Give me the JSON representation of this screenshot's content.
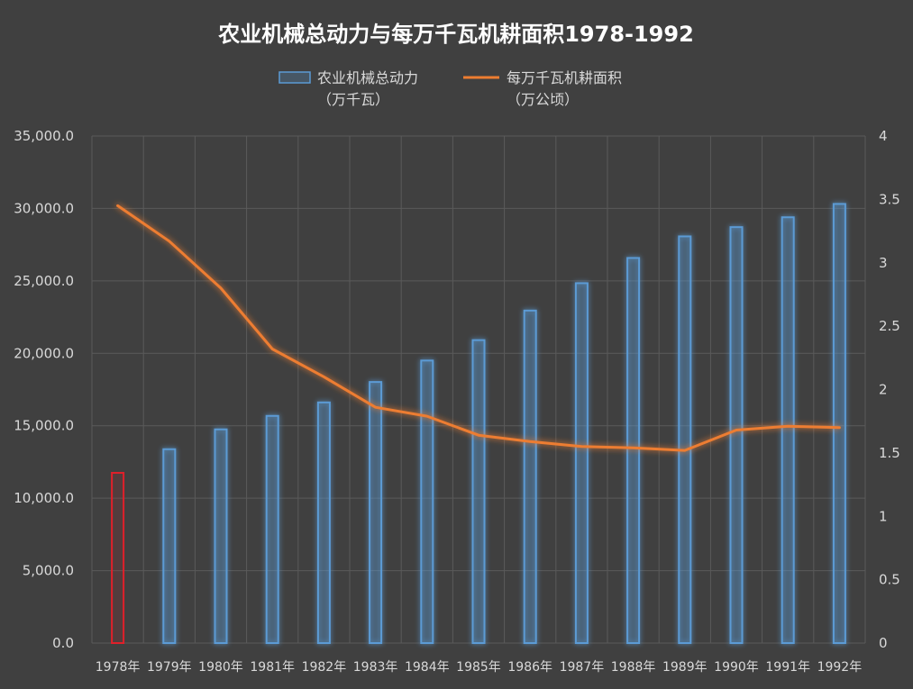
{
  "chart_data": {
    "type": "bar+line",
    "title": "农业机械总动力与每万千瓦机耕面积1978-1992",
    "categories": [
      "1978年",
      "1979年",
      "1980年",
      "1981年",
      "1982年",
      "1983年",
      "1984年",
      "1985年",
      "1986年",
      "1987年",
      "1988年",
      "1989年",
      "1990年",
      "1991年",
      "1992年"
    ],
    "series": [
      {
        "name": "农业机械总动力",
        "unit": "（万千瓦）",
        "type": "bar",
        "axis": "left",
        "values": [
          11750,
          13380,
          14750,
          15680,
          16610,
          18020,
          19500,
          20910,
          22950,
          24840,
          26580,
          28070,
          28710,
          29390,
          30310
        ]
      },
      {
        "name": "每万千瓦机耕面积",
        "unit": "（万公顷）",
        "type": "line",
        "axis": "right",
        "values": [
          3.45,
          3.17,
          2.8,
          2.32,
          2.1,
          1.86,
          1.79,
          1.64,
          1.59,
          1.55,
          1.54,
          1.52,
          1.68,
          1.71,
          1.7
        ]
      }
    ],
    "y_left": {
      "min": 0,
      "max": 35000,
      "ticks": [
        "0.0",
        "5,000.0",
        "10,000.0",
        "15,000.0",
        "20,000.0",
        "25,000.0",
        "30,000.0",
        "35,000.0"
      ]
    },
    "y_right": {
      "min": 0,
      "max": 4,
      "ticks": [
        "0",
        "0.5",
        "1",
        "1.5",
        "2",
        "2.5",
        "3",
        "3.5",
        "4"
      ]
    },
    "highlight_index": 0,
    "grid": true,
    "legend_position": "top",
    "colors": {
      "background": "#404040",
      "bar": "#5b9bd5",
      "bar_highlight": "#e0202a",
      "line": "#ed7d31",
      "grid": "#5a5a5a",
      "text": "#d9d9d9",
      "title": "#ffffff"
    }
  }
}
